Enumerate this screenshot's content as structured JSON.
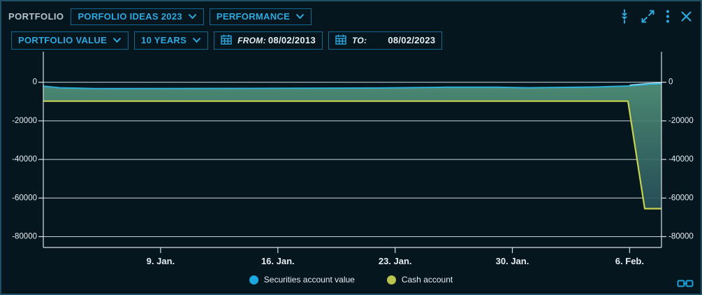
{
  "header": {
    "title": "PORTFOLIO",
    "portfolio_select": "PORFOLIO IDEAS 2023",
    "view_select": "PERFORMANCE",
    "icons": {
      "collapse": "collapse-vertical-icon",
      "expand": "expand-icon",
      "menu": "kebab-menu-icon",
      "close": "close-icon"
    }
  },
  "toolbar": {
    "metric_select": "PORTFOLIO VALUE",
    "range_select": "10 YEARS",
    "from_label": "FROM:",
    "from_value": "08/02/2013",
    "to_label": "TO:",
    "to_value": "08/02/2023"
  },
  "colors": {
    "background": "#05161f",
    "widget_border": "#1f4f64",
    "accent": "#2da9e0",
    "button_border": "#15688f",
    "grid": "#d8e0e4",
    "axis_text": "#e7eef1",
    "securities_line": "#2fb0d6",
    "securities_tip": "#a5e2f4",
    "cash_line": "#c6d150",
    "fill_top": "#52937a",
    "fill_bottom": "#1d4252",
    "legend_securities_dot": "#1ba7df",
    "legend_cash_dot": "#b9c44d"
  },
  "chart_data": {
    "type": "area",
    "title": "",
    "xlabel": "",
    "ylabel": "",
    "x_unit": "day-of-year 2023 (Jan 1 = 1)",
    "x_range_days": [
      2,
      38.9
    ],
    "x_ticks": [
      {
        "day": 9,
        "label": "9. Jan."
      },
      {
        "day": 16,
        "label": "16. Jan."
      },
      {
        "day": 23,
        "label": "23. Jan."
      },
      {
        "day": 30,
        "label": "30. Jan."
      },
      {
        "day": 37,
        "label": "6. Feb."
      }
    ],
    "y_range": [
      15800,
      -85600
    ],
    "y_ticks": [
      0,
      -20000,
      -40000,
      -60000,
      -80000
    ],
    "grid": true,
    "legend_position": "bottom-center",
    "series": [
      {
        "name": "Securities account value",
        "points": [
          [
            2,
            -2000
          ],
          [
            3,
            -2900
          ],
          [
            5,
            -3300
          ],
          [
            14,
            -3200
          ],
          [
            22,
            -3000
          ],
          [
            26,
            -2600
          ],
          [
            29,
            -2600
          ],
          [
            31,
            -2900
          ],
          [
            35,
            -2500
          ],
          [
            37,
            -1900
          ],
          [
            38,
            -1100
          ],
          [
            38.9,
            -700
          ]
        ]
      },
      {
        "name": "Cash account",
        "points": [
          [
            2,
            -9800
          ],
          [
            36.9,
            -9800
          ],
          [
            37.9,
            -65500
          ],
          [
            38.9,
            -65500
          ]
        ]
      }
    ],
    "legend": [
      {
        "label": "Securities account value"
      },
      {
        "label": "Cash account"
      }
    ]
  }
}
